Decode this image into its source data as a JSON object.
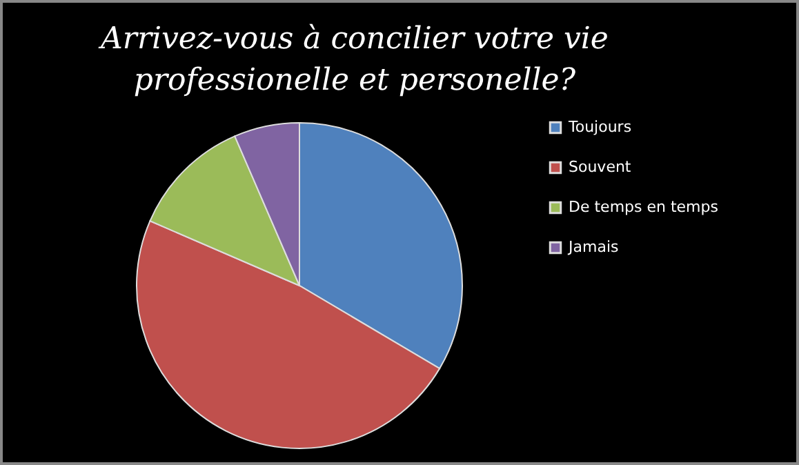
{
  "chart_data": {
    "type": "pie",
    "title": "Arrivez-vous à concilier votre vie professionelle et personelle?",
    "categories": [
      "Toujours",
      "Souvent",
      "De temps en temps",
      "Jamais"
    ],
    "values": [
      33.5,
      48,
      12,
      6.5
    ],
    "colors": [
      "#4f81bd",
      "#c0504d",
      "#9bbb59",
      "#8064a2"
    ],
    "legend": "right"
  }
}
